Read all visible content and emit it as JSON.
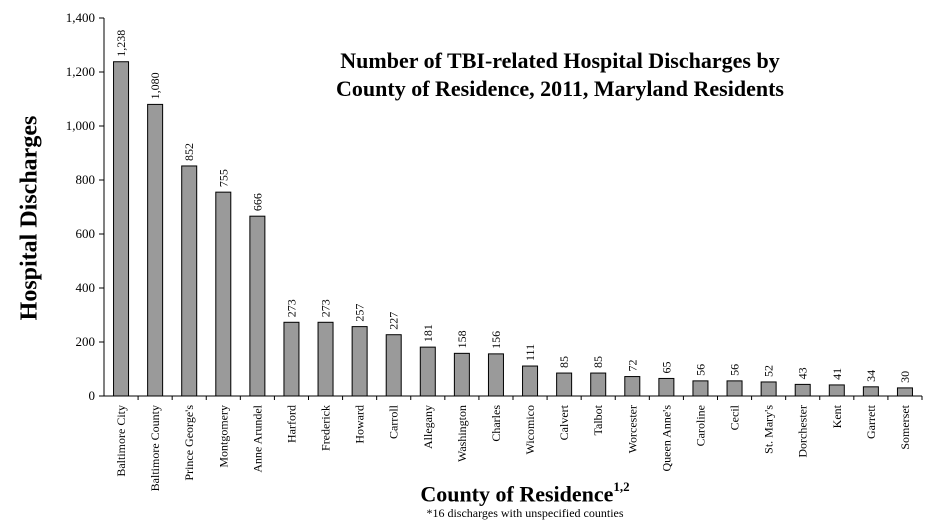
{
  "chart_data": {
    "type": "bar",
    "title_line1": "Number of TBI-related Hospital Discharges by",
    "title_line2": "County of Residence, 2011, Maryland Residents",
    "ylabel": "Hospital Discharges",
    "xlabel": "County of Residence",
    "xlabel_superscript": "1,2",
    "footnote": "*16 discharges with unspecified counties",
    "categories": [
      "Baltimore City",
      "Baltimore County",
      "Prince George's",
      "Montgomery",
      "Anne Arundel",
      "Harford",
      "Frederick",
      "Howard",
      "Carroll",
      "Allegany",
      "Washington",
      "Charles",
      "Wicomico",
      "Calvert",
      "Talbot",
      "Worcester",
      "Queen Anne's",
      "Caroline",
      "Cecil",
      "St. Mary's",
      "Dorchester",
      "Kent",
      "Garrett",
      "Somerset"
    ],
    "values": [
      1238,
      1080,
      852,
      755,
      666,
      273,
      273,
      257,
      227,
      181,
      158,
      156,
      111,
      85,
      85,
      72,
      65,
      56,
      56,
      52,
      43,
      41,
      34,
      30
    ],
    "value_labels": [
      "1,238",
      "1,080",
      "852",
      "755",
      "666",
      "273",
      "273",
      "257",
      "227",
      "181",
      "158",
      "156",
      "111",
      "85",
      "85",
      "72",
      "65",
      "56",
      "56",
      "52",
      "43",
      "41",
      "34",
      "30"
    ],
    "yticks": [
      "0",
      "200",
      "400",
      "600",
      "800",
      "1,000",
      "1,200",
      "1,400"
    ],
    "ylim": [
      0,
      1400
    ],
    "ytick_step": 200,
    "grid": false,
    "legend": "none",
    "bar_color": "#9a9a9a",
    "bar_edge_color": "#000000"
  }
}
